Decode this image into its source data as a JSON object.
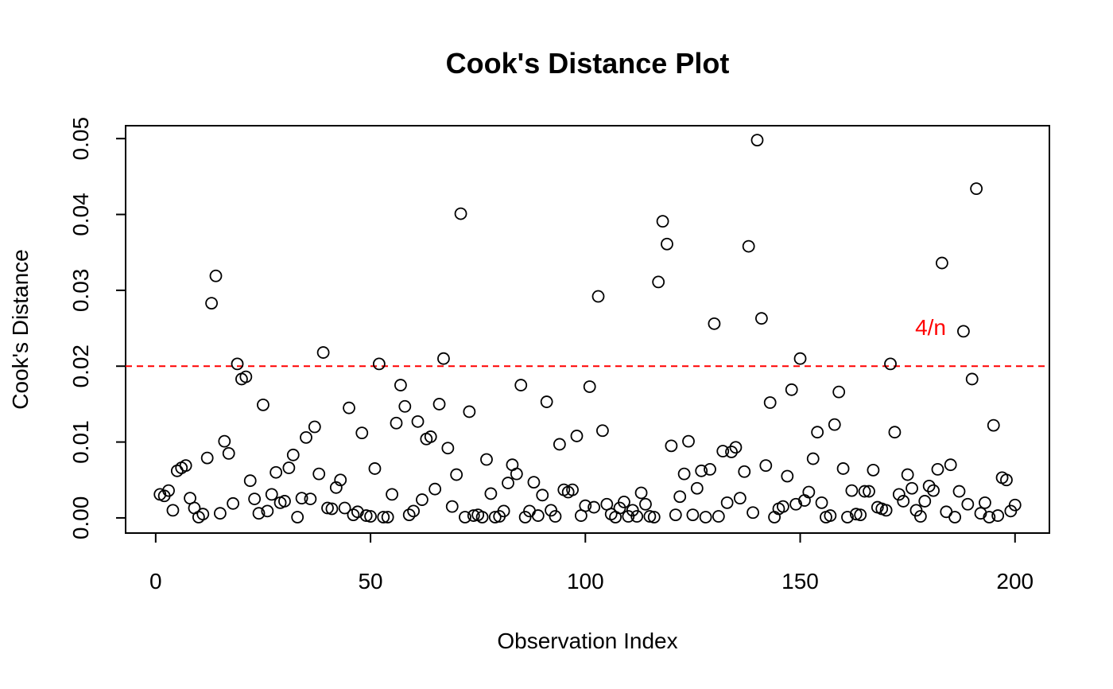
{
  "chart_data": {
    "type": "scatter",
    "title": "Cook's Distance Plot",
    "xlabel": "Observation Index",
    "ylabel": "Cook's Distance",
    "xlim": [
      -7,
      208
    ],
    "ylim": [
      -0.002,
      0.0517
    ],
    "x_ticks": [
      0,
      50,
      100,
      150,
      200
    ],
    "x_tick_labels": [
      "0",
      "50",
      "100",
      "150",
      "200"
    ],
    "y_ticks": [
      0,
      0.01,
      0.02,
      0.03,
      0.04,
      0.05
    ],
    "y_tick_labels": [
      "0.00",
      "0.01",
      "0.02",
      "0.03",
      "0.04",
      "0.05"
    ],
    "grid": false,
    "reference_line": {
      "y": 0.02,
      "label": "4/n",
      "color": "#ff0000",
      "style": "dashed"
    },
    "point_color": "#000000",
    "points": [
      [
        1,
        0.0031
      ],
      [
        2,
        0.0029
      ],
      [
        3,
        0.0036
      ],
      [
        4,
        0.001
      ],
      [
        5,
        0.0062
      ],
      [
        6,
        0.0066
      ],
      [
        7,
        0.0069
      ],
      [
        8,
        0.0026
      ],
      [
        9,
        0.0013
      ],
      [
        10,
        0.0001
      ],
      [
        11,
        0.0005
      ],
      [
        12,
        0.0079
      ],
      [
        13,
        0.0283
      ],
      [
        14,
        0.0319
      ],
      [
        15,
        0.0006
      ],
      [
        16,
        0.0101
      ],
      [
        17,
        0.0085
      ],
      [
        18,
        0.0019
      ],
      [
        19,
        0.0203
      ],
      [
        20,
        0.0183
      ],
      [
        21,
        0.0186
      ],
      [
        22,
        0.0049
      ],
      [
        23,
        0.0025
      ],
      [
        24,
        0.0006
      ],
      [
        25,
        0.0149
      ],
      [
        26,
        0.0009
      ],
      [
        27,
        0.0031
      ],
      [
        28,
        0.006
      ],
      [
        29,
        0.002
      ],
      [
        30,
        0.0022
      ],
      [
        31,
        0.0066
      ],
      [
        32,
        0.0083
      ],
      [
        33,
        0.0001
      ],
      [
        34,
        0.0026
      ],
      [
        35,
        0.0106
      ],
      [
        36,
        0.0025
      ],
      [
        37,
        0.012
      ],
      [
        38,
        0.0058
      ],
      [
        39,
        0.0218
      ],
      [
        40,
        0.0013
      ],
      [
        41,
        0.0012
      ],
      [
        42,
        0.004
      ],
      [
        43,
        0.005
      ],
      [
        44,
        0.0013
      ],
      [
        45,
        0.0145
      ],
      [
        46,
        0.0004
      ],
      [
        47,
        0.0008
      ],
      [
        48,
        0.0112
      ],
      [
        49,
        0.0003
      ],
      [
        50,
        0.0002
      ],
      [
        51,
        0.0065
      ],
      [
        52,
        0.0203
      ],
      [
        53,
        0.0001
      ],
      [
        54,
        0.0001
      ],
      [
        55,
        0.0031
      ],
      [
        56,
        0.0125
      ],
      [
        57,
        0.0175
      ],
      [
        58,
        0.0147
      ],
      [
        59,
        0.0004
      ],
      [
        60,
        0.0009
      ],
      [
        61,
        0.0127
      ],
      [
        62,
        0.0024
      ],
      [
        63,
        0.0104
      ],
      [
        64,
        0.0107
      ],
      [
        65,
        0.0038
      ],
      [
        66,
        0.015
      ],
      [
        67,
        0.021
      ],
      [
        68,
        0.0092
      ],
      [
        69,
        0.0015
      ],
      [
        70,
        0.0057
      ],
      [
        71,
        0.0401
      ],
      [
        72,
        0.0001
      ],
      [
        73,
        0.014
      ],
      [
        74,
        0.0003
      ],
      [
        75,
        0.0004
      ],
      [
        76,
        0.0001
      ],
      [
        77,
        0.0077
      ],
      [
        78,
        0.0032
      ],
      [
        79,
        0.0001
      ],
      [
        80,
        0.0002
      ],
      [
        81,
        0.0009
      ],
      [
        82,
        0.0046
      ],
      [
        83,
        0.007
      ],
      [
        84,
        0.0058
      ],
      [
        85,
        0.0175
      ],
      [
        86,
        0.0001
      ],
      [
        87,
        0.0009
      ],
      [
        88,
        0.0047
      ],
      [
        89,
        0.0003
      ],
      [
        90,
        0.003
      ],
      [
        91,
        0.0153
      ],
      [
        92,
        0.001
      ],
      [
        93,
        0.0002
      ],
      [
        94,
        0.0097
      ],
      [
        95,
        0.0037
      ],
      [
        96,
        0.0034
      ],
      [
        97,
        0.0037
      ],
      [
        98,
        0.0108
      ],
      [
        99,
        0.0003
      ],
      [
        100,
        0.0016
      ],
      [
        101,
        0.0173
      ],
      [
        102,
        0.0014
      ],
      [
        103,
        0.0292
      ],
      [
        104,
        0.0115
      ],
      [
        105,
        0.0018
      ],
      [
        106,
        0.0005
      ],
      [
        107,
        0.0001
      ],
      [
        108,
        0.0013
      ],
      [
        109,
        0.0021
      ],
      [
        110,
        0.0002
      ],
      [
        111,
        0.001
      ],
      [
        112,
        0.0002
      ],
      [
        113,
        0.0033
      ],
      [
        114,
        0.0018
      ],
      [
        115,
        0.0002
      ],
      [
        116,
        0.0001
      ],
      [
        117,
        0.0311
      ],
      [
        118,
        0.0391
      ],
      [
        119,
        0.0361
      ],
      [
        120,
        0.0095
      ],
      [
        121,
        0.0004
      ],
      [
        122,
        0.0028
      ],
      [
        123,
        0.0058
      ],
      [
        124,
        0.0101
      ],
      [
        125,
        0.0004
      ],
      [
        126,
        0.0039
      ],
      [
        127,
        0.0062
      ],
      [
        128,
        0.0001
      ],
      [
        129,
        0.0064
      ],
      [
        130,
        0.0256
      ],
      [
        131,
        0.0002
      ],
      [
        132,
        0.0088
      ],
      [
        133,
        0.002
      ],
      [
        134,
        0.0087
      ],
      [
        135,
        0.0093
      ],
      [
        136,
        0.0026
      ],
      [
        137,
        0.0061
      ],
      [
        138,
        0.0358
      ],
      [
        139,
        0.0007
      ],
      [
        140,
        0.0498
      ],
      [
        141,
        0.0263
      ],
      [
        142,
        0.0069
      ],
      [
        143,
        0.0152
      ],
      [
        144,
        0.0001
      ],
      [
        145,
        0.0012
      ],
      [
        146,
        0.0015
      ],
      [
        147,
        0.0055
      ],
      [
        148,
        0.0169
      ],
      [
        149,
        0.0018
      ],
      [
        150,
        0.021
      ],
      [
        151,
        0.0023
      ],
      [
        152,
        0.0034
      ],
      [
        153,
        0.0078
      ],
      [
        154,
        0.0113
      ],
      [
        155,
        0.002
      ],
      [
        156,
        0.0001
      ],
      [
        157,
        0.0003
      ],
      [
        158,
        0.0123
      ],
      [
        159,
        0.0166
      ],
      [
        160,
        0.0065
      ],
      [
        161,
        0.0001
      ],
      [
        162,
        0.0036
      ],
      [
        163,
        0.0005
      ],
      [
        164,
        0.0004
      ],
      [
        165,
        0.0035
      ],
      [
        166,
        0.0035
      ],
      [
        167,
        0.0063
      ],
      [
        168,
        0.0014
      ],
      [
        169,
        0.0012
      ],
      [
        170,
        0.001
      ],
      [
        171,
        0.0203
      ],
      [
        172,
        0.0113
      ],
      [
        173,
        0.0031
      ],
      [
        174,
        0.0022
      ],
      [
        175,
        0.0057
      ],
      [
        176,
        0.0039
      ],
      [
        177,
        0.001
      ],
      [
        178,
        0.0002
      ],
      [
        179,
        0.0022
      ],
      [
        180,
        0.0042
      ],
      [
        181,
        0.0036
      ],
      [
        182,
        0.0064
      ],
      [
        183,
        0.0336
      ],
      [
        184,
        0.0008
      ],
      [
        185,
        0.007
      ],
      [
        186,
        0.0001
      ],
      [
        187,
        0.0035
      ],
      [
        188,
        0.0246
      ],
      [
        189,
        0.0018
      ],
      [
        190,
        0.0183
      ],
      [
        191,
        0.0434
      ],
      [
        192,
        0.0006
      ],
      [
        193,
        0.002
      ],
      [
        194,
        0.0001
      ],
      [
        195,
        0.0122
      ],
      [
        196,
        0.0003
      ],
      [
        197,
        0.0053
      ],
      [
        198,
        0.005
      ],
      [
        199,
        0.0009
      ],
      [
        200,
        0.0017
      ]
    ]
  }
}
